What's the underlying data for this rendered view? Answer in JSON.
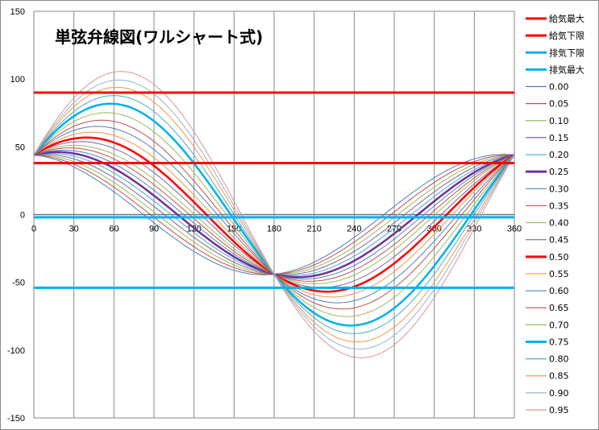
{
  "chart_data": {
    "type": "line",
    "title": "単弦弁線図(ワルシャート式)",
    "xlabel": "",
    "ylabel": "",
    "xlim": [
      0,
      360
    ],
    "ylim": [
      -150,
      150
    ],
    "xticks": [
      0,
      30,
      60,
      90,
      120,
      150,
      180,
      210,
      240,
      270,
      300,
      330,
      360
    ],
    "yticks": [
      150,
      100,
      50,
      0,
      -50,
      -100,
      -150
    ],
    "grid": "vertical",
    "legend_position": "right",
    "model": "y = a*cos(x) + b*sin(x), x in degrees",
    "hlines": [
      {
        "name": "給気最大",
        "value": 90,
        "color": "#FF0000",
        "thick": true
      },
      {
        "name": "給気下限",
        "value": 38,
        "color": "#FF0000",
        "thick": true
      },
      {
        "name": "排気下限",
        "value": -2,
        "color": "#00B0F0",
        "thick": true
      },
      {
        "name": "排気最大",
        "value": -54,
        "color": "#00B0F0",
        "thick": true
      }
    ],
    "series": [
      {
        "name": "0.00",
        "a": 44,
        "b": -6,
        "color": "#4A7EBB"
      },
      {
        "name": "0.05",
        "a": 44,
        "b": -2,
        "color": "#BE4B48"
      },
      {
        "name": "0.10",
        "a": 44,
        "b": 2,
        "color": "#98B954"
      },
      {
        "name": "0.15",
        "a": 44,
        "b": 6,
        "color": "#7D60A0"
      },
      {
        "name": "0.20",
        "a": 44,
        "b": 10,
        "color": "#46AAC5"
      },
      {
        "name": "0.25",
        "a": 44,
        "b": 14,
        "color": "#7030A0",
        "thick": true
      },
      {
        "name": "0.30",
        "a": 44,
        "b": 18,
        "color": "#4F81BD"
      },
      {
        "name": "0.35",
        "a": 44,
        "b": 22,
        "color": "#C0504D"
      },
      {
        "name": "0.40",
        "a": 44,
        "b": 26,
        "color": "#9BBB59"
      },
      {
        "name": "0.45",
        "a": 44,
        "b": 31,
        "color": "#8064A2"
      },
      {
        "name": "0.50",
        "a": 44,
        "b": 36,
        "color": "#FF0000",
        "thick": true
      },
      {
        "name": "0.55",
        "a": 44,
        "b": 42,
        "color": "#F79646"
      },
      {
        "name": "0.60",
        "a": 44,
        "b": 48,
        "color": "#4F81BD"
      },
      {
        "name": "0.65",
        "a": 44,
        "b": 54,
        "color": "#C0504D"
      },
      {
        "name": "0.70",
        "a": 44,
        "b": 61,
        "color": "#9BBB59"
      },
      {
        "name": "0.75",
        "a": 44,
        "b": 69,
        "color": "#00B0F0",
        "thick": true
      },
      {
        "name": "0.80",
        "a": 44,
        "b": 76,
        "color": "#4BACC6"
      },
      {
        "name": "0.85",
        "a": 44,
        "b": 83,
        "color": "#F79646"
      },
      {
        "name": "0.90",
        "a": 44,
        "b": 89,
        "color": "#95B3D7"
      },
      {
        "name": "0.95",
        "a": 44,
        "b": 96,
        "color": "#D99694"
      }
    ]
  }
}
